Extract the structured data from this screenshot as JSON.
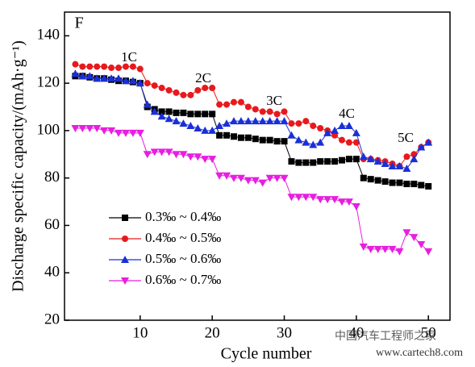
{
  "chart_data": {
    "type": "line",
    "xlabel": "Cycle number",
    "ylabel": "Discharge specific capacity/(mAh·g⁻¹)",
    "annotations": [
      "F",
      "1C",
      "2C",
      "3C",
      "4C",
      "5C"
    ],
    "watermark": [
      "中国汽车工程师之家",
      "www.cartech8.com"
    ],
    "legend": "lower left",
    "xlim": [
      -0.5,
      53
    ],
    "ylim": [
      20,
      150
    ],
    "xticks": [
      10,
      20,
      30,
      40,
      50
    ],
    "yticks": [
      20,
      40,
      60,
      80,
      100,
      120,
      140
    ],
    "x": [
      1,
      2,
      3,
      4,
      5,
      6,
      7,
      8,
      9,
      10,
      11,
      12,
      13,
      14,
      15,
      16,
      17,
      18,
      19,
      20,
      21,
      22,
      23,
      24,
      25,
      26,
      27,
      28,
      29,
      30,
      31,
      32,
      33,
      34,
      35,
      36,
      37,
      38,
      39,
      40,
      41,
      42,
      43,
      44,
      45,
      46,
      47,
      48,
      49,
      50
    ],
    "series": [
      {
        "name": "0.3‰ ~ 0.4‰",
        "color": "#000000",
        "marker": "square",
        "values": [
          123,
          123,
          122.5,
          122,
          122,
          121.5,
          121,
          121,
          120.5,
          120,
          110,
          109,
          108,
          108,
          107.5,
          107.5,
          107,
          107,
          107,
          107,
          98,
          98,
          97.5,
          97,
          97,
          96.5,
          96,
          96,
          95.5,
          95.5,
          87,
          86.5,
          86.5,
          86.5,
          87,
          87,
          87,
          87.5,
          88,
          88,
          80,
          79.5,
          79,
          78.5,
          78,
          78,
          77.5,
          77.5,
          77,
          76.5
        ]
      },
      {
        "name": "0.4‰ ~ 0.5‰",
        "color": "#e8191c",
        "marker": "circle",
        "values": [
          128,
          127,
          127,
          127,
          127,
          126.5,
          126.5,
          127,
          127,
          126,
          120,
          119,
          118,
          117,
          116,
          115,
          115,
          117,
          118,
          118,
          111,
          111,
          112,
          112,
          110,
          109,
          108,
          108,
          107,
          108,
          103,
          103,
          104,
          102,
          101,
          100,
          98,
          96,
          95,
          95,
          88,
          88,
          87.5,
          87,
          86,
          85,
          89,
          90,
          93,
          95
        ]
      },
      {
        "name": "0.5‰ ~ 0.6‰",
        "color": "#1a2fd6",
        "marker": "triangle-up",
        "values": [
          124,
          123,
          123,
          122,
          122,
          122,
          122,
          121,
          121,
          120,
          111,
          108,
          106,
          105,
          104,
          103,
          102,
          101,
          100,
          100,
          102,
          103,
          104,
          104,
          104,
          104,
          104,
          104,
          104,
          104,
          98,
          96,
          95,
          94,
          95,
          99,
          100,
          102,
          102,
          99,
          89,
          88,
          87,
          86,
          85,
          85,
          84,
          88,
          93,
          95
        ]
      },
      {
        "name": "0.6‰ ~ 0.7‰",
        "color": "#e81ee0",
        "marker": "triangle-down",
        "values": [
          101,
          101,
          101,
          101,
          100,
          100,
          99,
          99,
          99,
          99,
          90,
          91,
          91,
          91,
          90,
          90,
          89,
          89,
          88,
          88,
          81,
          81,
          80,
          80,
          79,
          79,
          78,
          80,
          80,
          80,
          72,
          72,
          72,
          72,
          71,
          71,
          71,
          70,
          70,
          68,
          51,
          50,
          50,
          50,
          50,
          49,
          57,
          55,
          52,
          49
        ]
      }
    ]
  }
}
